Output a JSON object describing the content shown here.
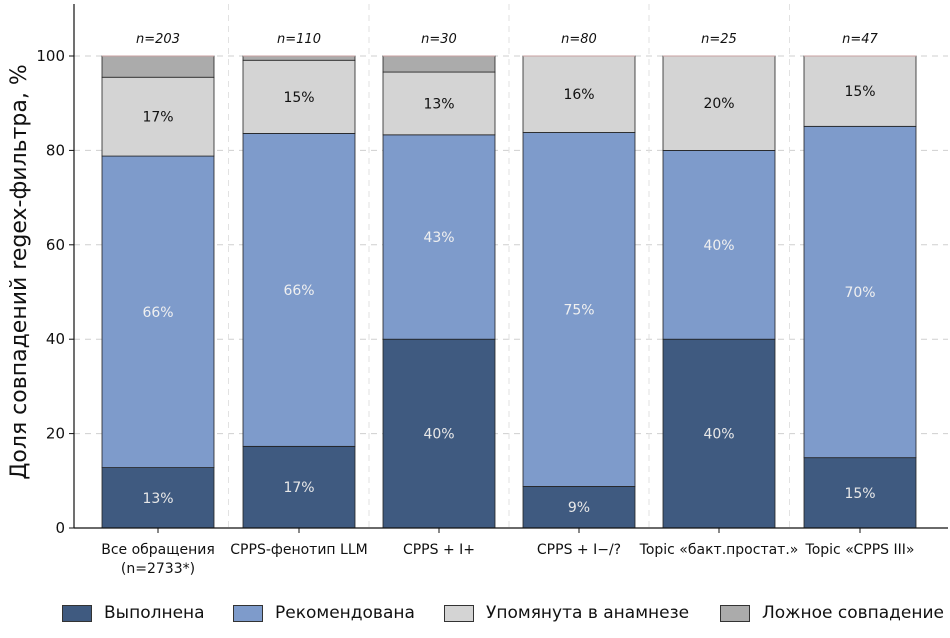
{
  "chart_data": {
    "type": "bar",
    "stacked": true,
    "ylabel": "Доля совпадений regex-фильтра, %",
    "xlabel": "",
    "ylim": [
      0,
      100
    ],
    "yticks": [
      0,
      20,
      40,
      60,
      80,
      100
    ],
    "grid": "y-dashed",
    "legend_position": "bottom",
    "categories": [
      "Все обращения\n(n=2733*)",
      "CPPS-фенотип LLM",
      "CPPS + I+",
      "CPPS + I−/?",
      "Topic «бакт.простат.»",
      "Topic «CPPS III»"
    ],
    "n_labels": [
      "n=203",
      "n=110",
      "n=30",
      "n=80",
      "n=25",
      "n=47"
    ],
    "series": [
      {
        "name": "Выполнена",
        "color": "#3f5a80",
        "label_color": "#e8e8e8",
        "values": [
          12.8,
          17.3,
          40,
          8.8,
          40,
          14.9
        ],
        "labels": [
          "13%",
          "17%",
          "40%",
          "9%",
          "40%",
          "15%"
        ]
      },
      {
        "name": "Рекомендована",
        "color": "#7e9bcb",
        "label_color": "#f0f0f0",
        "values": [
          66.0,
          66.3,
          43.3,
          75.0,
          40,
          70.2
        ],
        "labels": [
          "66%",
          "66%",
          "43%",
          "75%",
          "40%",
          "70%"
        ]
      },
      {
        "name": "Упомянута в анамнезе",
        "color": "#d4d4d4",
        "label_color": "#111111",
        "values": [
          16.7,
          15.5,
          13.3,
          16.2,
          20,
          14.9
        ],
        "labels": [
          "17%",
          "15%",
          "13%",
          "16%",
          "20%",
          "15%"
        ]
      },
      {
        "name": "Ложное совпадение",
        "color": "#ababab",
        "label_color": "#111111",
        "values": [
          4.5,
          0.9,
          3.4,
          0,
          0,
          0
        ],
        "labels": [
          "",
          "",
          "",
          "",
          "",
          ""
        ]
      }
    ]
  }
}
